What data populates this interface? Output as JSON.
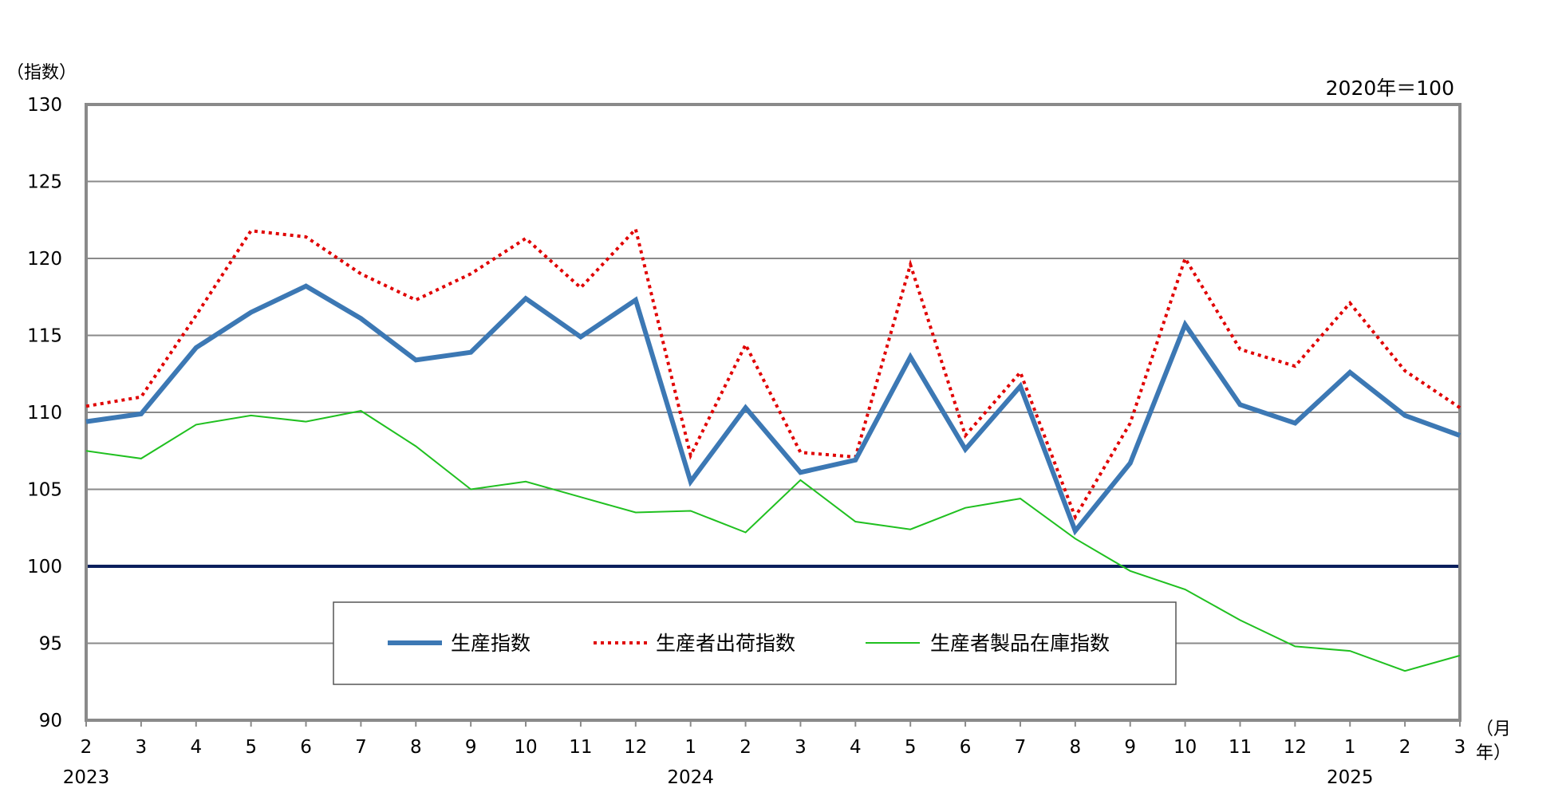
{
  "chart_data": {
    "type": "line",
    "ylabel": "（指数）",
    "base_note": "2020年＝100",
    "x_unit_label_month": "（月",
    "x_unit_label_year": "年）",
    "x_months": [
      "2",
      "3",
      "4",
      "5",
      "6",
      "7",
      "8",
      "9",
      "10",
      "11",
      "12",
      "1",
      "2",
      "3",
      "4",
      "5",
      "6",
      "7",
      "8",
      "9",
      "10",
      "11",
      "12",
      "1",
      "2",
      "3"
    ],
    "year_labels": [
      {
        "at_index": 0,
        "label": "2023"
      },
      {
        "at_index": 11,
        "label": "2024"
      },
      {
        "at_index": 23,
        "label": "2025"
      }
    ],
    "ylim": [
      90,
      130
    ],
    "yticks": [
      90,
      95,
      100,
      105,
      110,
      115,
      120,
      125,
      130
    ],
    "reference_line": 100,
    "grid": true,
    "legend_position": "bottom-center",
    "series": [
      {
        "name": "生産指数",
        "color": "#3C78B4",
        "style": "solid-thick",
        "values": [
          109.4,
          109.9,
          114.2,
          116.5,
          118.2,
          116.1,
          113.4,
          113.9,
          117.4,
          114.9,
          117.3,
          105.5,
          110.3,
          106.1,
          106.9,
          113.6,
          107.6,
          111.7,
          102.3,
          106.7,
          115.7,
          110.5,
          109.3,
          112.6,
          109.8,
          108.5
        ]
      },
      {
        "name": "生産者出荷指数",
        "color": "#E00000",
        "style": "dotted",
        "values": [
          110.4,
          111.0,
          116.3,
          121.8,
          121.4,
          119.0,
          117.3,
          119.0,
          121.3,
          118.1,
          121.9,
          107.2,
          114.4,
          107.4,
          107.1,
          119.6,
          108.5,
          112.6,
          103.2,
          109.3,
          120.0,
          114.1,
          113.0,
          117.1,
          112.7,
          110.3
        ]
      },
      {
        "name": "生産者製品在庫指数",
        "color": "#20C020",
        "style": "thin",
        "values": [
          107.5,
          107.0,
          109.2,
          109.8,
          109.4,
          110.1,
          107.8,
          105.0,
          105.5,
          104.5,
          103.5,
          103.6,
          102.2,
          105.6,
          102.9,
          102.4,
          103.8,
          104.4,
          101.8,
          99.7,
          98.5,
          96.5,
          94.8,
          94.5,
          93.2,
          94.2
        ]
      }
    ]
  }
}
